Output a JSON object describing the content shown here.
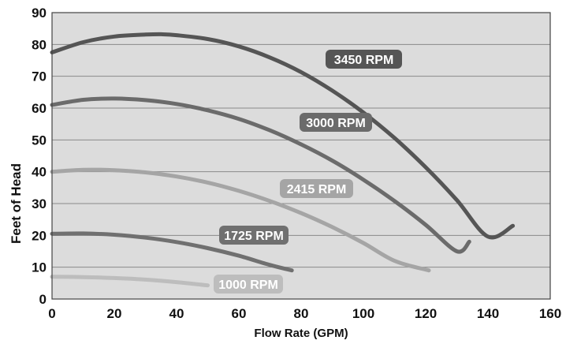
{
  "chart_data": {
    "type": "line",
    "title": "",
    "xlabel": "Flow Rate (GPM)",
    "ylabel": "Feet of Head",
    "xlim": [
      0,
      160
    ],
    "ylim": [
      0,
      90
    ],
    "xticks": [
      0,
      20,
      40,
      60,
      80,
      100,
      120,
      140,
      160
    ],
    "yticks": [
      0,
      10,
      20,
      30,
      40,
      50,
      60,
      70,
      80,
      90
    ],
    "xtick_labels": [
      "0",
      "20",
      "40",
      "60",
      "80",
      "100",
      "120",
      "140",
      "160"
    ],
    "ytick_labels": [
      "0",
      "10",
      "20",
      "30",
      "40",
      "50",
      "60",
      "70",
      "80",
      "90"
    ],
    "grid": "horizontal",
    "background": "#dcdcdc",
    "series": [
      {
        "name": "3450 RPM",
        "color": "#555555",
        "x": [
          0,
          10,
          20,
          30,
          35,
          40,
          50,
          60,
          70,
          80,
          90,
          100,
          110,
          120,
          130,
          140,
          148
        ],
        "y": [
          77.5,
          80.7,
          82.5,
          83.1,
          83.2,
          82.9,
          81.7,
          79.4,
          75.9,
          71.3,
          65.5,
          58.6,
          50.6,
          41.4,
          31.1,
          19.6,
          23
        ]
      },
      {
        "name": "3000 RPM",
        "color": "#6b6b6b",
        "x": [
          0,
          10,
          20,
          30,
          40,
          50,
          60,
          70,
          80,
          90,
          100,
          110,
          120,
          130,
          134
        ],
        "y": [
          61,
          62.6,
          63,
          62.5,
          61.3,
          59.3,
          56.6,
          53,
          48.6,
          43.5,
          37.5,
          30.8,
          23.3,
          15,
          18
        ]
      },
      {
        "name": "2415 RPM",
        "color": "#a5a5a5",
        "x": [
          0,
          10,
          20,
          30,
          40,
          50,
          60,
          70,
          80,
          90,
          100,
          110,
          121
        ],
        "y": [
          40,
          40.6,
          40.5,
          39.8,
          38.5,
          36.6,
          34,
          30.8,
          27,
          22.6,
          17.6,
          12,
          9
        ]
      },
      {
        "name": "1725 RPM",
        "color": "#707070",
        "x": [
          0,
          10,
          20,
          30,
          40,
          50,
          60,
          70,
          77
        ],
        "y": [
          20.5,
          20.6,
          20.2,
          19.3,
          17.9,
          16,
          13.6,
          10.7,
          9
        ]
      },
      {
        "name": "1000 RPM",
        "color": "#bdbdbd",
        "x": [
          0,
          10,
          20,
          30,
          40,
          50
        ],
        "y": [
          7,
          6.9,
          6.6,
          6.1,
          5.3,
          4.3
        ]
      }
    ],
    "series_labels": [
      {
        "text": "3450 RPM",
        "color": "#555555"
      },
      {
        "text": "3000 RPM",
        "color": "#6b6b6b"
      },
      {
        "text": "2415 RPM",
        "color": "#a5a5a5"
      },
      {
        "text": "1725 RPM",
        "color": "#707070"
      },
      {
        "text": "1000 RPM",
        "color": "#bdbdbd"
      }
    ]
  }
}
